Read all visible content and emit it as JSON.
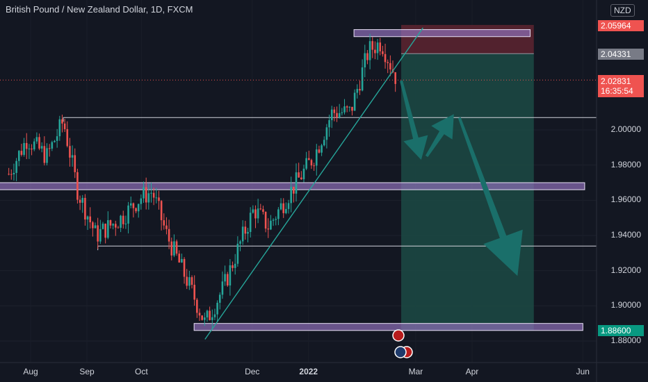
{
  "header": {
    "title": "British Pound / New Zealand Dollar, 1D, FXCM",
    "currency": "NZD"
  },
  "price_tags": {
    "stop": "2.05964",
    "entry": "2.04331",
    "last": "2.02831",
    "countdown": "16:35:54",
    "target": "1.88600"
  },
  "colors": {
    "background": "#131722",
    "up": "#26a69a",
    "down": "#ef5350",
    "zone_fill": "#8e6fb8",
    "trendline": "#26a69a",
    "profit_zone": "#1c4a44",
    "loss_zone": "#5e2430",
    "arrow": "#1a6f6a"
  },
  "chart_data": {
    "type": "candlestick",
    "symbol": "British Pound / New Zealand Dollar",
    "interval": "1D",
    "source": "FXCM",
    "x_tick_labels": [
      "Aug",
      "Sep",
      "Oct",
      "Dec",
      "2022",
      "Mar",
      "Apr",
      "Jun"
    ],
    "y_tick_labels": [
      "2.00000",
      "1.98000",
      "1.96000",
      "1.94000",
      "1.92000",
      "1.90000",
      "1.88000"
    ],
    "y_range": [
      1.876,
      2.07
    ],
    "key_points": [
      {
        "date": "2021-07-20",
        "price": 1.975
      },
      {
        "date": "2021-07-30",
        "price": 1.995
      },
      {
        "date": "2021-08-10",
        "price": 1.985
      },
      {
        "date": "2021-08-19",
        "price": 2.005
      },
      {
        "date": "2021-08-27",
        "price": 1.965
      },
      {
        "date": "2021-09-06",
        "price": 1.94
      },
      {
        "date": "2021-09-20",
        "price": 1.95
      },
      {
        "date": "2021-10-01",
        "price": 1.962
      },
      {
        "date": "2021-10-07",
        "price": 1.965
      },
      {
        "date": "2021-10-15",
        "price": 1.94
      },
      {
        "date": "2021-10-28",
        "price": 1.91
      },
      {
        "date": "2021-11-05",
        "price": 1.89
      },
      {
        "date": "2021-11-15",
        "price": 1.91
      },
      {
        "date": "2021-11-26",
        "price": 1.94
      },
      {
        "date": "2021-12-02",
        "price": 1.955
      },
      {
        "date": "2021-12-10",
        "price": 1.945
      },
      {
        "date": "2021-12-22",
        "price": 1.965
      },
      {
        "date": "2022-01-04",
        "price": 1.985
      },
      {
        "date": "2022-01-14",
        "price": 2.01
      },
      {
        "date": "2022-01-24",
        "price": 2.01
      },
      {
        "date": "2022-02-03",
        "price": 2.045
      },
      {
        "date": "2022-02-10",
        "price": 2.05
      },
      {
        "date": "2022-02-18",
        "price": 2.03
      }
    ],
    "horizontal_levels": [
      {
        "type": "zone",
        "from_date": "2022-01-26",
        "to_date": "2022-05-03",
        "low": 2.053,
        "high": 2.057
      },
      {
        "type": "line",
        "from_date": "2021-08-19",
        "price": 2.007
      },
      {
        "type": "zone",
        "from_date": "2021-07-10",
        "to_date": "2022-06-02",
        "low": 1.966,
        "high": 1.97
      },
      {
        "type": "line",
        "from_date": "2021-09-07",
        "price": 1.934
      },
      {
        "type": "zone",
        "from_date": "2021-10-30",
        "to_date": "2022-06-01",
        "low": 1.886,
        "high": 1.89
      }
    ],
    "trendline": {
      "from": {
        "date": "2021-11-05",
        "price": 1.881
      },
      "to": {
        "date": "2022-03-05",
        "price": 2.058
      }
    },
    "position": {
      "side": "short",
      "from_date": "2022-02-21",
      "to_date": "2022-05-05",
      "stop": 2.05964,
      "entry": 2.04331,
      "target": 1.886
    },
    "projection_arrows": [
      {
        "from": {
          "date": "2022-02-21",
          "price": 2.028
        },
        "to": {
          "date": "2022-03-04",
          "price": 1.983
        }
      },
      {
        "from": {
          "date": "2022-03-07",
          "price": 1.985
        },
        "to": {
          "date": "2022-03-22",
          "price": 2.009
        }
      },
      {
        "from": {
          "date": "2022-03-25",
          "price": 2.007
        },
        "to": {
          "date": "2022-04-26",
          "price": 1.917
        }
      }
    ]
  }
}
